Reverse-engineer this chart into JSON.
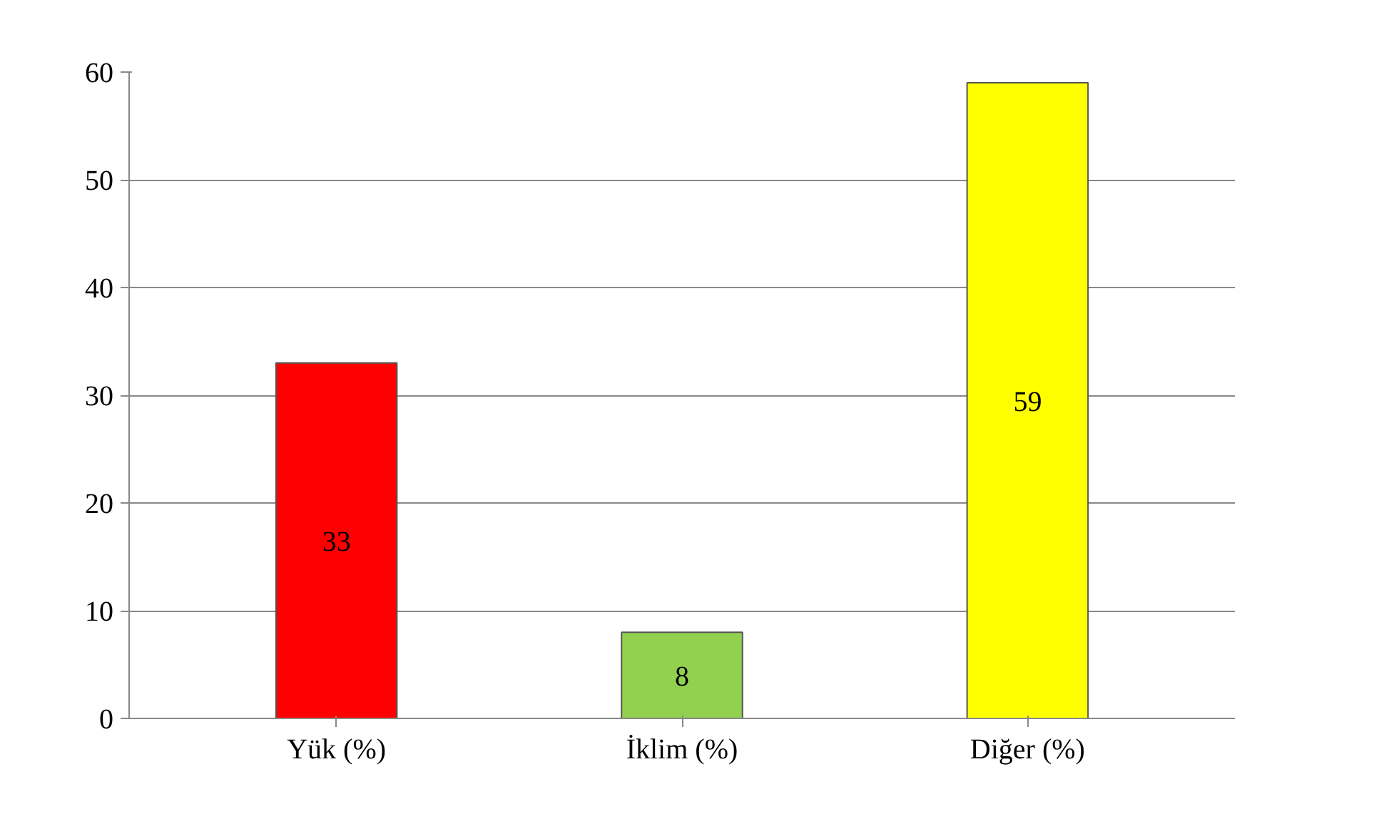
{
  "chart_data": {
    "type": "bar",
    "categories": [
      "Yük (%)",
      "İklim (%)",
      "Diğer (%)"
    ],
    "values": [
      33,
      8,
      59
    ],
    "colors": [
      "#ff0000",
      "#92d050",
      "#ffff00"
    ],
    "ylim": [
      0,
      60
    ],
    "yticks": [
      0,
      10,
      20,
      30,
      40,
      50,
      60
    ],
    "grid": "y",
    "data_labels": true
  }
}
